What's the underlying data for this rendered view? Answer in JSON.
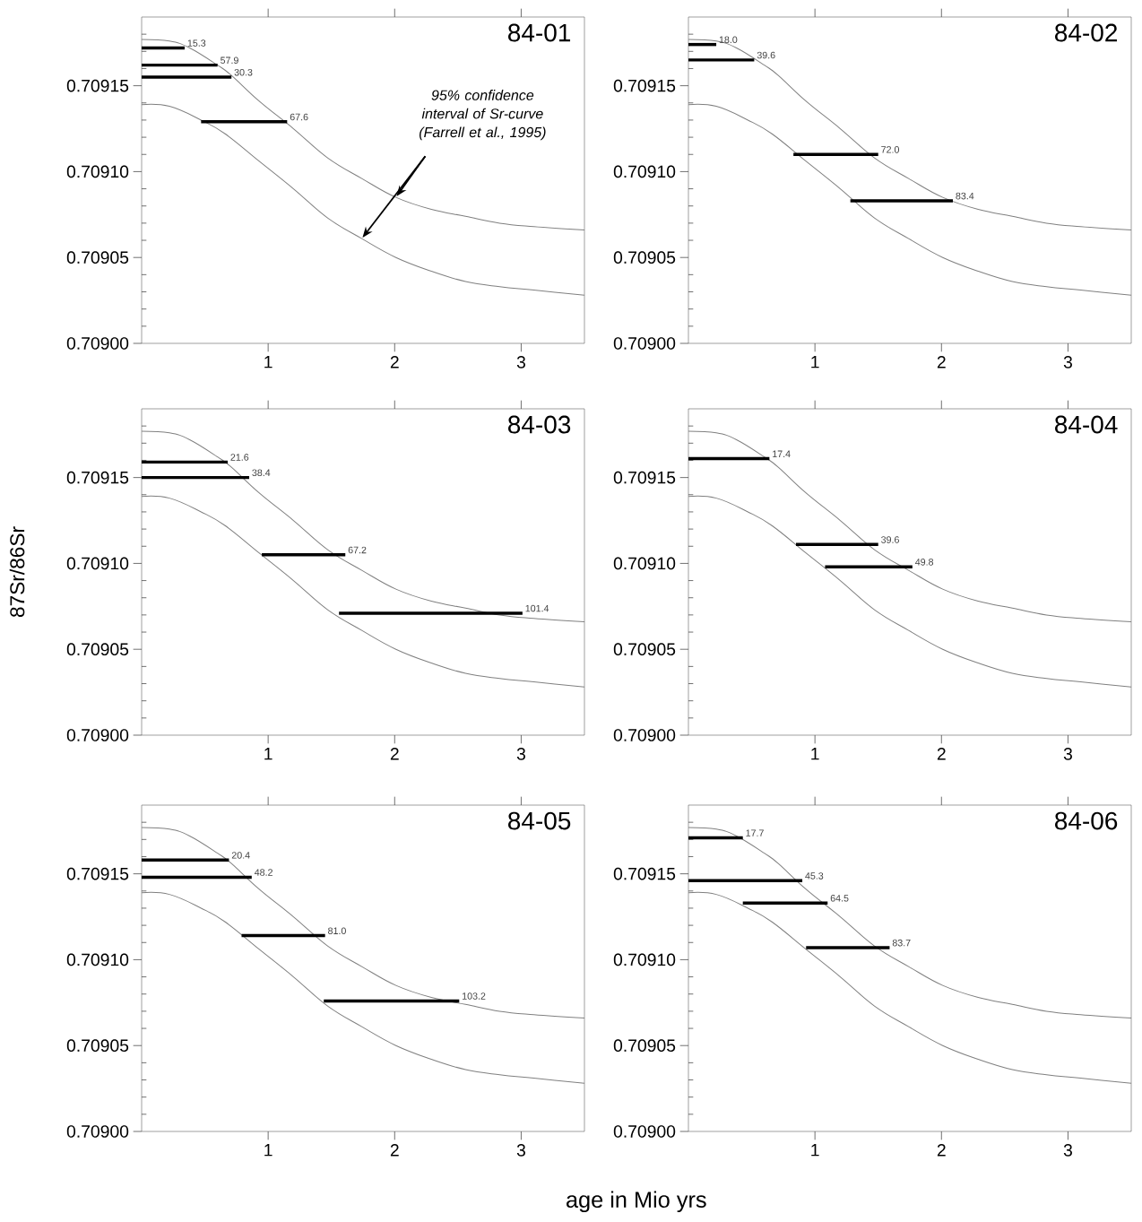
{
  "chart_data": [
    {
      "type": "line",
      "title": "84-01",
      "xlim": [
        0,
        3.5
      ],
      "ylim": [
        0.709,
        0.70919
      ],
      "xticks": [
        1,
        2,
        3
      ],
      "yticks": [
        {
          "value": 0.709,
          "label": "0.70900"
        },
        {
          "value": 0.70901,
          "label": null
        },
        {
          "value": 0.70902,
          "label": null
        },
        {
          "value": 0.70903,
          "label": null
        },
        {
          "value": 0.70904,
          "label": null
        },
        {
          "value": 0.70905,
          "label": "0.70905"
        },
        {
          "value": 0.70906,
          "label": null
        },
        {
          "value": 0.70907,
          "label": null
        },
        {
          "value": 0.70908,
          "label": null
        },
        {
          "value": 0.70909,
          "label": null
        },
        {
          "value": 0.7091,
          "label": "0.70910"
        },
        {
          "value": 0.70911,
          "label": null
        },
        {
          "value": 0.70912,
          "label": null
        },
        {
          "value": 0.70913,
          "label": null
        },
        {
          "value": 0.70914,
          "label": null
        },
        {
          "value": 0.70915,
          "label": "0.70915"
        },
        {
          "value": 0.70916,
          "label": null
        },
        {
          "value": 0.70917,
          "label": null
        },
        {
          "value": 0.70918,
          "label": null
        }
      ],
      "series": [
        {
          "color": "#808080",
          "x": [
            0,
            0.22,
            0.38,
            0.6,
            0.71,
            0.93,
            1.2,
            1.47,
            1.74,
            2.01,
            2.29,
            2.56,
            2.83,
            3.1,
            3.5
          ],
          "values": [
            0.709177,
            0.709176,
            0.709172,
            0.709162,
            0.709156,
            0.709141,
            0.709125,
            0.709108,
            0.709096,
            0.709085,
            0.709078,
            0.709074,
            0.70907,
            0.709068,
            0.709066
          ]
        },
        {
          "color": "#808080",
          "x": [
            0,
            0.22,
            0.47,
            0.66,
            0.93,
            1.2,
            1.47,
            1.74,
            2.01,
            2.29,
            2.56,
            2.83,
            3.1,
            3.5
          ],
          "values": [
            0.709139,
            0.709138,
            0.70913,
            0.709122,
            0.709106,
            0.70909,
            0.709073,
            0.709061,
            0.70905,
            0.709042,
            0.709036,
            0.709033,
            0.709031,
            0.709028
          ]
        },
        {
          "name": "15.3",
          "color": "#000000",
          "x": [
            0,
            0.34
          ],
          "values": [
            0.709172,
            0.709172
          ]
        },
        {
          "name": "57.9",
          "color": "#000000",
          "x": [
            0,
            0.6
          ],
          "values": [
            0.709162,
            0.709162
          ]
        },
        {
          "name": "30.3",
          "color": "#000000",
          "x": [
            0,
            0.71
          ],
          "values": [
            0.709155,
            0.709155
          ]
        },
        {
          "name": "67.6",
          "color": "#000000",
          "x": [
            0.47,
            1.15
          ],
          "values": [
            0.709129,
            0.709129
          ]
        }
      ],
      "annotations": [
        "95% confidence interval of Sr-curve (Farrell et al., 1995)"
      ]
    },
    {
      "type": "line",
      "title": "84-02",
      "xlim": [
        0,
        3.5
      ],
      "ylim": [
        0.709,
        0.70919
      ],
      "xticks": [
        1,
        2,
        3
      ],
      "yticks": [
        {
          "value": 0.709,
          "label": "0.70900"
        },
        {
          "value": 0.70901,
          "label": null
        },
        {
          "value": 0.70902,
          "label": null
        },
        {
          "value": 0.70903,
          "label": null
        },
        {
          "value": 0.70904,
          "label": null
        },
        {
          "value": 0.70905,
          "label": "0.70905"
        },
        {
          "value": 0.70906,
          "label": null
        },
        {
          "value": 0.70907,
          "label": null
        },
        {
          "value": 0.70908,
          "label": null
        },
        {
          "value": 0.70909,
          "label": null
        },
        {
          "value": 0.7091,
          "label": "0.70910"
        },
        {
          "value": 0.70911,
          "label": null
        },
        {
          "value": 0.70912,
          "label": null
        },
        {
          "value": 0.70913,
          "label": null
        },
        {
          "value": 0.70914,
          "label": null
        },
        {
          "value": 0.70915,
          "label": "0.70915"
        },
        {
          "value": 0.70916,
          "label": null
        },
        {
          "value": 0.70917,
          "label": null
        },
        {
          "value": 0.70918,
          "label": null
        }
      ],
      "series": [
        {
          "color": "#808080",
          "x": [
            0,
            0.22,
            0.38,
            0.6,
            0.71,
            0.93,
            1.2,
            1.47,
            1.74,
            2.01,
            2.29,
            2.56,
            2.83,
            3.1,
            3.5
          ],
          "values": [
            0.709177,
            0.709176,
            0.709172,
            0.709162,
            0.709156,
            0.709141,
            0.709125,
            0.709108,
            0.709096,
            0.709085,
            0.709078,
            0.709074,
            0.70907,
            0.709068,
            0.709066
          ]
        },
        {
          "color": "#808080",
          "x": [
            0,
            0.22,
            0.47,
            0.66,
            0.93,
            1.2,
            1.47,
            1.74,
            2.01,
            2.29,
            2.56,
            2.83,
            3.1,
            3.5
          ],
          "values": [
            0.709139,
            0.709138,
            0.70913,
            0.709122,
            0.709106,
            0.70909,
            0.709073,
            0.709061,
            0.70905,
            0.709042,
            0.709036,
            0.709033,
            0.709031,
            0.709028
          ]
        },
        {
          "name": "18.0",
          "color": "#000000",
          "x": [
            0,
            0.22
          ],
          "values": [
            0.709174,
            0.709174
          ]
        },
        {
          "name": "39.6",
          "color": "#000000",
          "x": [
            0,
            0.52
          ],
          "values": [
            0.709165,
            0.709165
          ]
        },
        {
          "name": "72.0",
          "color": "#000000",
          "x": [
            0.83,
            1.5
          ],
          "values": [
            0.70911,
            0.70911
          ]
        },
        {
          "name": "83.4",
          "color": "#000000",
          "x": [
            1.28,
            2.09
          ],
          "values": [
            0.709083,
            0.709083
          ]
        }
      ]
    },
    {
      "type": "line",
      "title": "84-03",
      "ylabel": "87Sr/86Sr",
      "xlim": [
        0,
        3.5
      ],
      "ylim": [
        0.709,
        0.70919
      ],
      "xticks": [
        1,
        2,
        3
      ],
      "yticks": [
        {
          "value": 0.709,
          "label": "0.70900"
        },
        {
          "value": 0.70901,
          "label": null
        },
        {
          "value": 0.70902,
          "label": null
        },
        {
          "value": 0.70903,
          "label": null
        },
        {
          "value": 0.70904,
          "label": null
        },
        {
          "value": 0.70905,
          "label": "0.70905"
        },
        {
          "value": 0.70906,
          "label": null
        },
        {
          "value": 0.70907,
          "label": null
        },
        {
          "value": 0.70908,
          "label": null
        },
        {
          "value": 0.70909,
          "label": null
        },
        {
          "value": 0.7091,
          "label": "0.70910"
        },
        {
          "value": 0.70911,
          "label": null
        },
        {
          "value": 0.70912,
          "label": null
        },
        {
          "value": 0.70913,
          "label": null
        },
        {
          "value": 0.70914,
          "label": null
        },
        {
          "value": 0.70915,
          "label": "0.70915"
        },
        {
          "value": 0.70916,
          "label": null
        },
        {
          "value": 0.70917,
          "label": null
        },
        {
          "value": 0.70918,
          "label": null
        }
      ],
      "series": [
        {
          "color": "#808080",
          "x": [
            0,
            0.22,
            0.38,
            0.6,
            0.71,
            0.93,
            1.2,
            1.47,
            1.74,
            2.01,
            2.29,
            2.56,
            2.83,
            3.1,
            3.5
          ],
          "values": [
            0.709177,
            0.709176,
            0.709172,
            0.709162,
            0.709156,
            0.709141,
            0.709125,
            0.709108,
            0.709096,
            0.709085,
            0.709078,
            0.709074,
            0.70907,
            0.709068,
            0.709066
          ]
        },
        {
          "color": "#808080",
          "x": [
            0,
            0.22,
            0.47,
            0.66,
            0.93,
            1.2,
            1.47,
            1.74,
            2.01,
            2.29,
            2.56,
            2.83,
            3.1,
            3.5
          ],
          "values": [
            0.709139,
            0.709138,
            0.70913,
            0.709122,
            0.709106,
            0.70909,
            0.709073,
            0.709061,
            0.70905,
            0.709042,
            0.709036,
            0.709033,
            0.709031,
            0.709028
          ]
        },
        {
          "name": "21.6",
          "color": "#000000",
          "x": [
            0,
            0.68
          ],
          "values": [
            0.709159,
            0.709159
          ]
        },
        {
          "name": "38.4",
          "color": "#000000",
          "x": [
            0,
            0.85
          ],
          "values": [
            0.70915,
            0.70915
          ]
        },
        {
          "name": "67.2",
          "color": "#000000",
          "x": [
            0.95,
            1.61
          ],
          "values": [
            0.709105,
            0.709105
          ]
        },
        {
          "name": "101.4",
          "color": "#000000",
          "x": [
            1.56,
            3.01
          ],
          "values": [
            0.709071,
            0.709071
          ]
        }
      ]
    },
    {
      "type": "line",
      "title": "84-04",
      "xlim": [
        0,
        3.5
      ],
      "ylim": [
        0.709,
        0.70919
      ],
      "xticks": [
        1,
        2,
        3
      ],
      "yticks": [
        {
          "value": 0.709,
          "label": "0.70900"
        },
        {
          "value": 0.70901,
          "label": null
        },
        {
          "value": 0.70902,
          "label": null
        },
        {
          "value": 0.70903,
          "label": null
        },
        {
          "value": 0.70904,
          "label": null
        },
        {
          "value": 0.70905,
          "label": "0.70905"
        },
        {
          "value": 0.70906,
          "label": null
        },
        {
          "value": 0.70907,
          "label": null
        },
        {
          "value": 0.70908,
          "label": null
        },
        {
          "value": 0.70909,
          "label": null
        },
        {
          "value": 0.7091,
          "label": "0.70910"
        },
        {
          "value": 0.70911,
          "label": null
        },
        {
          "value": 0.70912,
          "label": null
        },
        {
          "value": 0.70913,
          "label": null
        },
        {
          "value": 0.70914,
          "label": null
        },
        {
          "value": 0.70915,
          "label": "0.70915"
        },
        {
          "value": 0.70916,
          "label": null
        },
        {
          "value": 0.70917,
          "label": null
        },
        {
          "value": 0.70918,
          "label": null
        }
      ],
      "series": [
        {
          "color": "#808080",
          "x": [
            0,
            0.22,
            0.38,
            0.6,
            0.71,
            0.93,
            1.2,
            1.47,
            1.74,
            2.01,
            2.29,
            2.56,
            2.83,
            3.1,
            3.5
          ],
          "values": [
            0.709177,
            0.709176,
            0.709172,
            0.709162,
            0.709156,
            0.709141,
            0.709125,
            0.709108,
            0.709096,
            0.709085,
            0.709078,
            0.709074,
            0.70907,
            0.709068,
            0.709066
          ]
        },
        {
          "color": "#808080",
          "x": [
            0,
            0.22,
            0.47,
            0.66,
            0.93,
            1.2,
            1.47,
            1.74,
            2.01,
            2.29,
            2.56,
            2.83,
            3.1,
            3.5
          ],
          "values": [
            0.709139,
            0.709138,
            0.70913,
            0.709122,
            0.709106,
            0.70909,
            0.709073,
            0.709061,
            0.70905,
            0.709042,
            0.709036,
            0.709033,
            0.709031,
            0.709028
          ]
        },
        {
          "name": "17.4",
          "color": "#000000",
          "x": [
            0,
            0.64
          ],
          "values": [
            0.709161,
            0.709161
          ]
        },
        {
          "name": "39.6",
          "color": "#000000",
          "x": [
            0.85,
            1.5
          ],
          "values": [
            0.709111,
            0.709111
          ]
        },
        {
          "name": "49.8",
          "color": "#000000",
          "x": [
            1.08,
            1.77
          ],
          "values": [
            0.709098,
            0.709098
          ]
        }
      ]
    },
    {
      "type": "line",
      "title": "84-05",
      "xlabel": "age in Mio yrs",
      "xlim": [
        0,
        3.5
      ],
      "ylim": [
        0.709,
        0.70919
      ],
      "xticks": [
        1,
        2,
        3
      ],
      "yticks": [
        {
          "value": 0.709,
          "label": "0.70900"
        },
        {
          "value": 0.70901,
          "label": null
        },
        {
          "value": 0.70902,
          "label": null
        },
        {
          "value": 0.70903,
          "label": null
        },
        {
          "value": 0.70904,
          "label": null
        },
        {
          "value": 0.70905,
          "label": "0.70905"
        },
        {
          "value": 0.70906,
          "label": null
        },
        {
          "value": 0.70907,
          "label": null
        },
        {
          "value": 0.70908,
          "label": null
        },
        {
          "value": 0.70909,
          "label": null
        },
        {
          "value": 0.7091,
          "label": "0.70910"
        },
        {
          "value": 0.70911,
          "label": null
        },
        {
          "value": 0.70912,
          "label": null
        },
        {
          "value": 0.70913,
          "label": null
        },
        {
          "value": 0.70914,
          "label": null
        },
        {
          "value": 0.70915,
          "label": "0.70915"
        },
        {
          "value": 0.70916,
          "label": null
        },
        {
          "value": 0.70917,
          "label": null
        },
        {
          "value": 0.70918,
          "label": null
        }
      ],
      "series": [
        {
          "color": "#808080",
          "x": [
            0,
            0.22,
            0.38,
            0.6,
            0.71,
            0.93,
            1.2,
            1.47,
            1.74,
            2.01,
            2.29,
            2.56,
            2.83,
            3.1,
            3.5
          ],
          "values": [
            0.709177,
            0.709176,
            0.709172,
            0.709162,
            0.709156,
            0.709141,
            0.709125,
            0.709108,
            0.709096,
            0.709085,
            0.709078,
            0.709074,
            0.70907,
            0.709068,
            0.709066
          ]
        },
        {
          "color": "#808080",
          "x": [
            0,
            0.22,
            0.47,
            0.66,
            0.93,
            1.2,
            1.47,
            1.74,
            2.01,
            2.29,
            2.56,
            2.83,
            3.1,
            3.5
          ],
          "values": [
            0.709139,
            0.709138,
            0.70913,
            0.709122,
            0.709106,
            0.70909,
            0.709073,
            0.709061,
            0.70905,
            0.709042,
            0.709036,
            0.709033,
            0.709031,
            0.709028
          ]
        },
        {
          "name": "20.4",
          "color": "#000000",
          "x": [
            0,
            0.69
          ],
          "values": [
            0.709158,
            0.709158
          ]
        },
        {
          "name": "48.2",
          "color": "#000000",
          "x": [
            0,
            0.87
          ],
          "values": [
            0.709148,
            0.709148
          ]
        },
        {
          "name": "81.0",
          "color": "#000000",
          "x": [
            0.79,
            1.45
          ],
          "values": [
            0.709114,
            0.709114
          ]
        },
        {
          "name": "103.2",
          "color": "#000000",
          "x": [
            1.44,
            2.51
          ],
          "values": [
            0.709076,
            0.709076
          ]
        }
      ]
    },
    {
      "type": "line",
      "title": "84-06",
      "xlim": [
        0,
        3.5
      ],
      "ylim": [
        0.709,
        0.70919
      ],
      "xticks": [
        1,
        2,
        3
      ],
      "yticks": [
        {
          "value": 0.709,
          "label": "0.70900"
        },
        {
          "value": 0.70901,
          "label": null
        },
        {
          "value": 0.70902,
          "label": null
        },
        {
          "value": 0.70903,
          "label": null
        },
        {
          "value": 0.70904,
          "label": null
        },
        {
          "value": 0.70905,
          "label": "0.70905"
        },
        {
          "value": 0.70906,
          "label": null
        },
        {
          "value": 0.70907,
          "label": null
        },
        {
          "value": 0.70908,
          "label": null
        },
        {
          "value": 0.70909,
          "label": null
        },
        {
          "value": 0.7091,
          "label": "0.70910"
        },
        {
          "value": 0.70911,
          "label": null
        },
        {
          "value": 0.70912,
          "label": null
        },
        {
          "value": 0.70913,
          "label": null
        },
        {
          "value": 0.70914,
          "label": null
        },
        {
          "value": 0.70915,
          "label": "0.70915"
        },
        {
          "value": 0.70916,
          "label": null
        },
        {
          "value": 0.70917,
          "label": null
        },
        {
          "value": 0.70918,
          "label": null
        }
      ],
      "series": [
        {
          "color": "#808080",
          "x": [
            0,
            0.22,
            0.38,
            0.6,
            0.71,
            0.93,
            1.2,
            1.47,
            1.74,
            2.01,
            2.29,
            2.56,
            2.83,
            3.1,
            3.5
          ],
          "values": [
            0.709177,
            0.709176,
            0.709172,
            0.709162,
            0.709156,
            0.709141,
            0.709125,
            0.709108,
            0.709096,
            0.709085,
            0.709078,
            0.709074,
            0.70907,
            0.709068,
            0.709066
          ]
        },
        {
          "color": "#808080",
          "x": [
            0,
            0.22,
            0.47,
            0.66,
            0.93,
            1.2,
            1.47,
            1.74,
            2.01,
            2.29,
            2.56,
            2.83,
            3.1,
            3.5
          ],
          "values": [
            0.709139,
            0.709138,
            0.70913,
            0.709122,
            0.709106,
            0.70909,
            0.709073,
            0.709061,
            0.70905,
            0.709042,
            0.709036,
            0.709033,
            0.709031,
            0.709028
          ]
        },
        {
          "name": "17.7",
          "color": "#000000",
          "x": [
            0,
            0.43
          ],
          "values": [
            0.709171,
            0.709171
          ]
        },
        {
          "name": "45.3",
          "color": "#000000",
          "x": [
            0,
            0.9
          ],
          "values": [
            0.709146,
            0.709146
          ]
        },
        {
          "name": "64.5",
          "color": "#000000",
          "x": [
            0.43,
            1.1
          ],
          "values": [
            0.709133,
            0.709133
          ]
        },
        {
          "name": "83.7",
          "color": "#000000",
          "x": [
            0.93,
            1.59
          ],
          "values": [
            0.709107,
            0.709107
          ]
        }
      ]
    }
  ]
}
